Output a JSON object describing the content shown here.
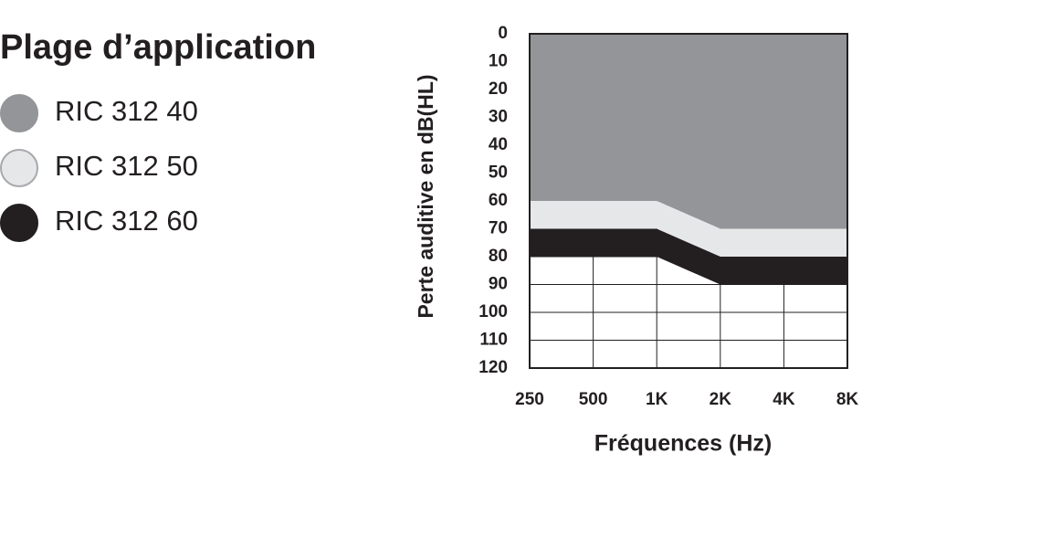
{
  "chart_data": {
    "type": "stacked_area",
    "title": "Plage d’application",
    "y_label": "Perte auditive en dB(HL)",
    "x_label": "Fréquences (Hz)",
    "categories": [
      "250",
      "500",
      "1K",
      "2K",
      "4K",
      "8K"
    ],
    "series": [
      {
        "name": "RIC 312 40",
        "color": "#939598",
        "values": [
          60,
          60,
          60,
          70,
          70,
          70
        ]
      },
      {
        "name": "RIC 312 50",
        "color": "#e6e7e8",
        "values": [
          10,
          10,
          10,
          10,
          10,
          10
        ]
      },
      {
        "name": "RIC 312 60",
        "color": "#231f20",
        "values": [
          10,
          10,
          10,
          10,
          10,
          10
        ]
      }
    ],
    "ylim": [
      0,
      120
    ],
    "y_inverted": true,
    "yticks": [
      0,
      10,
      20,
      30,
      40,
      50,
      60,
      70,
      80,
      90,
      100,
      110,
      120
    ],
    "grid": true
  }
}
